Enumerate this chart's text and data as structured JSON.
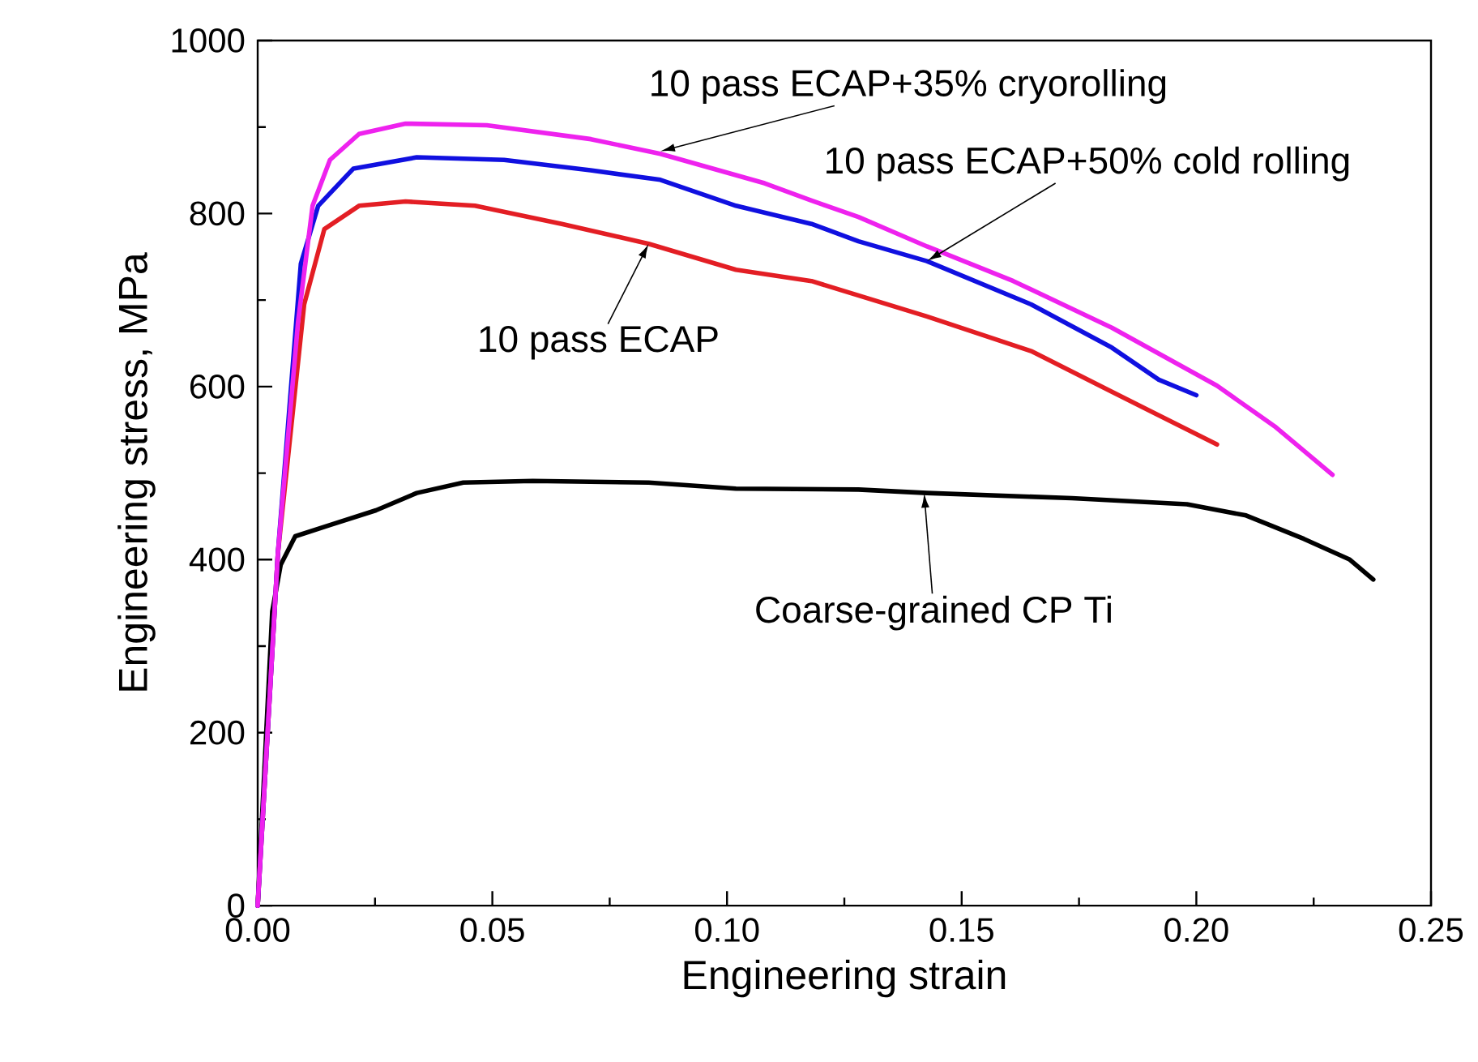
{
  "chart_data": {
    "type": "line",
    "xlabel": "Engineering strain",
    "ylabel": "Engineering stress, MPa",
    "xlim": [
      0,
      0.25
    ],
    "ylim": [
      0,
      1000
    ],
    "xticks": [
      {
        "value": 0,
        "label": "0.00"
      },
      {
        "value": 0.025,
        "label": null
      },
      {
        "value": 0.05,
        "label": "0.05"
      },
      {
        "value": 0.075,
        "label": null
      },
      {
        "value": 0.1,
        "label": "0.10"
      },
      {
        "value": 0.125,
        "label": null
      },
      {
        "value": 0.15,
        "label": "0.15"
      },
      {
        "value": 0.175,
        "label": null
      },
      {
        "value": 0.2,
        "label": "0.20"
      },
      {
        "value": 0.225,
        "label": null
      },
      {
        "value": 0.25,
        "label": "0.25"
      }
    ],
    "yticks": [
      0,
      {
        "value": 100,
        "label": null
      },
      200,
      {
        "value": 300,
        "label": null
      },
      400,
      {
        "value": 500,
        "label": null
      },
      600,
      {
        "value": 700,
        "label": null
      },
      800,
      {
        "value": 900,
        "label": null
      },
      1000
    ],
    "series": [
      {
        "color": "#000000",
        "x": [
          0,
          0.0031,
          0.0049,
          0.008,
          0.0154,
          0.0252,
          0.0339,
          0.0438,
          0.0586,
          0.0833,
          0.1019,
          0.128,
          0.1426,
          0.1735,
          0.198,
          0.2106,
          0.2229,
          0.2327,
          0.2377
        ],
        "values": [
          0,
          340,
          394,
          427,
          440,
          457,
          477,
          489,
          491,
          489,
          482,
          481,
          477,
          471,
          464,
          451,
          424,
          400,
          377
        ]
      },
      {
        "color": "#e31e24",
        "x": [
          0,
          0.0043,
          0.0099,
          0.0142,
          0.0216,
          0.0315,
          0.0463,
          0.0648,
          0.0833,
          0.1019,
          0.118,
          0.1426,
          0.1648,
          0.182,
          0.2044
        ],
        "values": [
          0,
          407,
          695,
          782,
          809,
          814,
          809,
          788,
          765,
          735,
          722,
          681,
          641,
          594,
          533
        ]
      },
      {
        "color": "#1010e0",
        "x": [
          0,
          0.0043,
          0.0092,
          0.0129,
          0.0204,
          0.0339,
          0.0525,
          0.0709,
          0.0858,
          0.1019,
          0.118,
          0.128,
          0.1426,
          0.1648,
          0.182,
          0.192,
          0.2
        ],
        "values": [
          0,
          407,
          742,
          809,
          852,
          865,
          862,
          850,
          839,
          809,
          788,
          768,
          745,
          695,
          645,
          608,
          590
        ]
      },
      {
        "color": "#ee22ee",
        "x": [
          0,
          0.0043,
          0.0086,
          0.0117,
          0.0154,
          0.0216,
          0.0315,
          0.0488,
          0.071,
          0.0858,
          0.108,
          0.118,
          0.128,
          0.1426,
          0.161,
          0.182,
          0.2044,
          0.2167,
          0.229
        ],
        "values": [
          0,
          407,
          675,
          809,
          862,
          892,
          904,
          902,
          886,
          869,
          835,
          815,
          796,
          762,
          722,
          668,
          601,
          554,
          498
        ]
      }
    ],
    "annotations": [
      {
        "text": "10 pass ECAP+35% cryorolling",
        "x": 0.0858,
        "y": 872
      },
      {
        "text": "10 pass ECAP+50% cold rolling",
        "x": 0.1426,
        "y": 745
      },
      {
        "text": "10 pass ECAP",
        "x": 0.0833,
        "y": 765
      },
      {
        "text": "Coarse-grained CP Ti",
        "x": 0.142,
        "y": 477
      }
    ]
  }
}
